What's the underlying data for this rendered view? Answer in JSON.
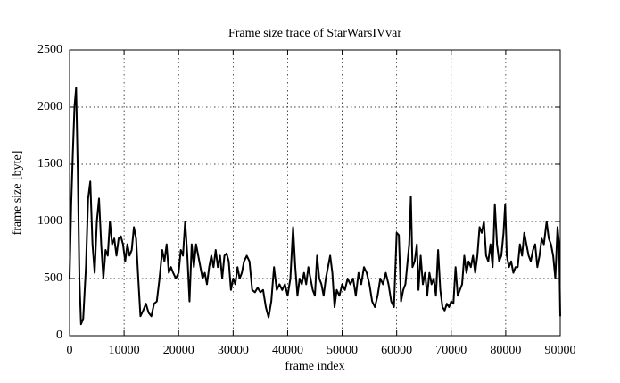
{
  "chart_data": {
    "type": "line",
    "title": "Frame size trace of StarWarsIVvar",
    "xlabel": "frame index",
    "ylabel": "frame size [byte]",
    "color": "#000000",
    "grid": true,
    "xlim": [
      0,
      90000
    ],
    "xticks": [
      0,
      10000,
      20000,
      30000,
      40000,
      50000,
      60000,
      70000,
      80000,
      90000
    ],
    "ylim": [
      0,
      2500
    ],
    "yticks": [
      0,
      500,
      1000,
      1500,
      2000,
      2500
    ],
    "x": [
      0,
      300,
      600,
      900,
      1200,
      1500,
      1800,
      2100,
      2500,
      3000,
      3400,
      3800,
      4200,
      4600,
      5000,
      5400,
      5800,
      6200,
      6600,
      7000,
      7400,
      7800,
      8200,
      8600,
      9000,
      9400,
      9800,
      10200,
      10600,
      11000,
      11400,
      11800,
      12200,
      12600,
      13000,
      13500,
      14000,
      14500,
      15000,
      15500,
      16000,
      16500,
      17000,
      17400,
      17800,
      18200,
      18600,
      19000,
      19500,
      20000,
      20400,
      20800,
      21200,
      21600,
      22000,
      22400,
      22800,
      23200,
      23600,
      24000,
      24400,
      24800,
      25200,
      25600,
      26000,
      26400,
      26800,
      27200,
      27600,
      28000,
      28400,
      28800,
      29200,
      29600,
      30000,
      30400,
      30800,
      31200,
      31600,
      32000,
      32500,
      33000,
      33500,
      34000,
      34500,
      35000,
      35500,
      36000,
      36500,
      37000,
      37500,
      38000,
      38500,
      39000,
      39500,
      40000,
      40500,
      41000,
      41400,
      41800,
      42200,
      42600,
      43000,
      43400,
      43800,
      44200,
      44600,
      45000,
      45400,
      45800,
      46200,
      46600,
      47000,
      47400,
      47800,
      48200,
      48600,
      49000,
      49500,
      50000,
      50500,
      51000,
      51500,
      52000,
      52500,
      53000,
      53500,
      54000,
      54500,
      55000,
      55500,
      56000,
      56500,
      57000,
      57500,
      58000,
      58500,
      59000,
      59500,
      60000,
      60400,
      60800,
      61200,
      61600,
      62000,
      62300,
      62600,
      62900,
      63300,
      63700,
      64000,
      64400,
      64800,
      65200,
      65600,
      66000,
      66400,
      66800,
      67200,
      67600,
      68000,
      68400,
      68800,
      69200,
      69600,
      70000,
      70400,
      70800,
      71200,
      71600,
      72000,
      72400,
      72800,
      73200,
      73600,
      74000,
      74400,
      74800,
      75200,
      75600,
      76000,
      76400,
      76800,
      77200,
      77600,
      78000,
      78400,
      78800,
      79200,
      79600,
      79900,
      80200,
      80600,
      81000,
      81400,
      81800,
      82200,
      82600,
      83000,
      83400,
      83800,
      84200,
      84600,
      85000,
      85400,
      85800,
      86200,
      86600,
      87000,
      87500,
      87900,
      88300,
      88700,
      89100,
      89500,
      89800,
      90000
    ],
    "values": [
      500,
      1150,
      1600,
      2000,
      2170,
      1450,
      500,
      100,
      150,
      600,
      1200,
      1350,
      800,
      550,
      1000,
      1200,
      800,
      500,
      750,
      700,
      1000,
      800,
      850,
      700,
      850,
      870,
      800,
      650,
      800,
      700,
      750,
      950,
      850,
      500,
      170,
      220,
      280,
      200,
      170,
      280,
      300,
      500,
      750,
      650,
      800,
      550,
      600,
      550,
      500,
      550,
      750,
      700,
      1000,
      700,
      300,
      800,
      600,
      800,
      700,
      600,
      500,
      550,
      450,
      600,
      700,
      600,
      750,
      600,
      700,
      500,
      700,
      720,
      650,
      400,
      500,
      450,
      600,
      500,
      550,
      650,
      700,
      650,
      400,
      380,
      420,
      380,
      400,
      250,
      160,
      300,
      600,
      400,
      450,
      400,
      450,
      350,
      500,
      950,
      600,
      350,
      500,
      450,
      550,
      450,
      600,
      500,
      400,
      350,
      700,
      500,
      450,
      350,
      500,
      600,
      700,
      550,
      250,
      400,
      350,
      450,
      400,
      500,
      450,
      500,
      350,
      550,
      450,
      600,
      550,
      450,
      300,
      250,
      350,
      500,
      450,
      550,
      450,
      300,
      250,
      900,
      880,
      300,
      400,
      450,
      650,
      800,
      1220,
      600,
      650,
      800,
      400,
      700,
      450,
      550,
      350,
      550,
      450,
      500,
      350,
      750,
      400,
      250,
      220,
      280,
      250,
      300,
      280,
      600,
      350,
      400,
      450,
      700,
      550,
      650,
      600,
      700,
      550,
      700,
      950,
      900,
      1000,
      700,
      650,
      800,
      600,
      1150,
      800,
      650,
      700,
      900,
      1150,
      700,
      600,
      650,
      550,
      600,
      600,
      800,
      700,
      900,
      800,
      700,
      650,
      750,
      800,
      600,
      700,
      850,
      800,
      1000,
      850,
      800,
      700,
      500,
      950,
      800,
      170
    ]
  }
}
